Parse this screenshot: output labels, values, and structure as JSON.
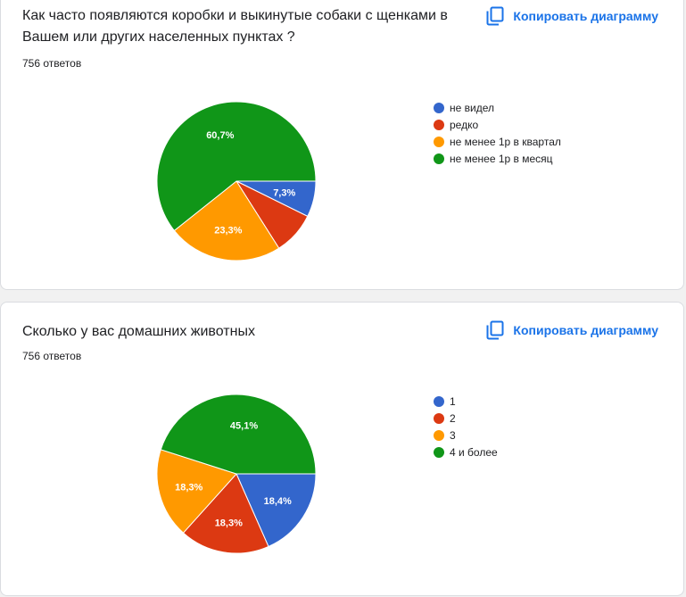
{
  "copy_label": "Копировать диаграмму",
  "colors": {
    "blue": "#3366cc",
    "red": "#dc3912",
    "orange": "#ff9900",
    "green": "#109618",
    "link": "#1a73e8"
  },
  "questions": [
    {
      "title": "Как часто появляются коробки и выкинутые собаки с щенками в Вашем или других  населенных пунктах ?",
      "count": "756 ответов",
      "legend": [
        "не видел",
        "редко",
        "не менее 1р в квартал",
        "не менее 1р в месяц"
      ]
    },
    {
      "title": "Сколько у вас домашних животных",
      "count": "756 ответов",
      "legend": [
        "1",
        "2",
        "3",
        "4 и более"
      ]
    }
  ],
  "chart_data": [
    {
      "type": "pie",
      "title": "Как часто появляются коробки и выкинутые собаки с щенками в Вашем или других  населенных пунктах ?",
      "categories": [
        "не видел",
        "редко",
        "не менее 1р в квартал",
        "не менее 1р в месяц"
      ],
      "values": [
        7.3,
        8.7,
        23.3,
        60.7
      ],
      "labels": [
        "7,3%",
        "",
        "23,3%",
        "60,7%"
      ],
      "colors": [
        "#3366cc",
        "#dc3912",
        "#ff9900",
        "#109618"
      ],
      "legend_position": "right"
    },
    {
      "type": "pie",
      "title": "Сколько у вас домашних животных",
      "categories": [
        "1",
        "2",
        "3",
        "4 и более"
      ],
      "values": [
        18.4,
        18.3,
        18.3,
        45.1
      ],
      "labels": [
        "18,4%",
        "18,3%",
        "18,3%",
        "45,1%"
      ],
      "colors": [
        "#3366cc",
        "#dc3912",
        "#ff9900",
        "#109618"
      ],
      "legend_position": "right"
    }
  ]
}
